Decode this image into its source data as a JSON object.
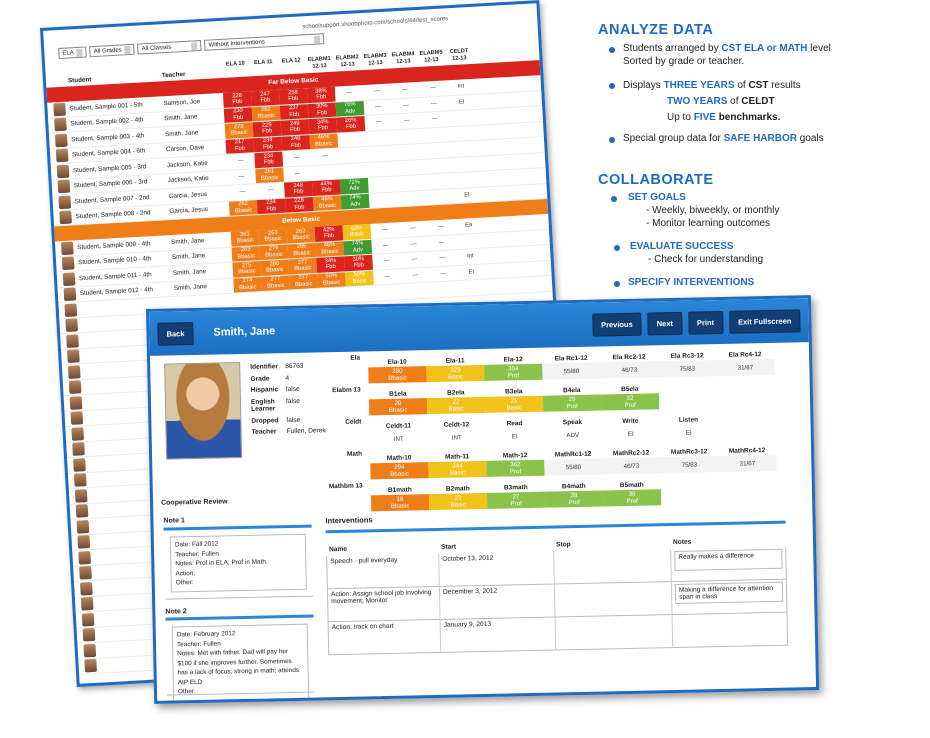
{
  "back": {
    "url": "schoolsupport.shoobphoto.com/schools/44/test_scores",
    "filters": [
      "ELA",
      "All Grades",
      "All Classes",
      "Without Interventions"
    ],
    "headers": {
      "student": "Student",
      "teacher": "Teacher",
      "cols": [
        "ELA 10",
        "ELA 11",
        "ELA 12",
        "ELABM1 12-13",
        "ELABM2 12-13",
        "ELABM3 12-13",
        "ELABM4 12-13",
        "ELABM5 12-13",
        "CELDT 12-13"
      ]
    },
    "bands": {
      "far_below": "Far Below Basic",
      "below": "Below Basic"
    },
    "rows_fbb": [
      {
        "name": "Student, Sample 001 - 5th",
        "teacher": "Samson, Joe",
        "scores": [
          [
            "228",
            "Fbb",
            "r"
          ],
          [
            "247",
            "Fbb",
            "r"
          ],
          [
            "258",
            "Fbb",
            "r"
          ],
          [
            "38%",
            "Fbb",
            "r"
          ],
          [
            "—",
            "",
            "n"
          ],
          [
            "—",
            "",
            "n"
          ],
          [
            "—",
            "",
            "n"
          ],
          [
            "—",
            "",
            "n"
          ],
          [
            "Int",
            "",
            "n"
          ]
        ]
      },
      {
        "name": "Student, Sample 002 - 4th",
        "teacher": "Smith, Jane",
        "scores": [
          [
            "230",
            "Fbb",
            "r"
          ],
          [
            "262",
            "Bbasic",
            "o"
          ],
          [
            "237",
            "Fbb",
            "r"
          ],
          [
            "30%",
            "Fbb",
            "r"
          ],
          [
            "76%",
            "Adv",
            "g"
          ],
          [
            "—",
            "",
            "n"
          ],
          [
            "—",
            "",
            "n"
          ],
          [
            "—",
            "",
            "n"
          ],
          [
            "EI",
            "",
            "n"
          ]
        ]
      },
      {
        "name": "Student, Sample 003 - 4th",
        "teacher": "Smith, Jane",
        "scores": [
          [
            "278",
            "Bbasic",
            "o"
          ],
          [
            "229",
            "Fbb",
            "r"
          ],
          [
            "249",
            "Fbb",
            "r"
          ],
          [
            "34%",
            "Fbb",
            "r"
          ],
          [
            "26%",
            "Fbb",
            "r"
          ],
          [
            "—",
            "",
            "n"
          ],
          [
            "—",
            "",
            "n"
          ],
          [
            "—",
            "",
            "n"
          ],
          [
            "",
            "",
            "n"
          ]
        ]
      },
      {
        "name": "Student, Sample 004 - 6th",
        "teacher": "Carson, Dave",
        "scores": [
          [
            "217",
            "Fbb",
            "r"
          ],
          [
            "234",
            "Fbb",
            "r"
          ],
          [
            "246",
            "Fbb",
            "r"
          ],
          [
            "46%",
            "Bbasic",
            "o"
          ],
          [
            "",
            "",
            "n"
          ],
          [
            "",
            "",
            "n"
          ],
          [
            "",
            "",
            "n"
          ],
          [
            "",
            "",
            "n"
          ],
          [
            "",
            "",
            "n"
          ]
        ]
      },
      {
        "name": "Student, Sample 005 - 3rd",
        "teacher": "Jackson, Katie",
        "scores": [
          [
            "—",
            "",
            "n"
          ],
          [
            "234",
            "Fbb",
            "r"
          ],
          [
            "—",
            "",
            "n"
          ],
          [
            "—",
            "",
            "n"
          ],
          [
            "",
            "",
            "n"
          ],
          [
            "",
            "",
            "n"
          ],
          [
            "",
            "",
            "n"
          ],
          [
            "",
            "",
            "n"
          ],
          [
            "",
            "",
            "n"
          ]
        ]
      },
      {
        "name": "Student, Sample 006 - 3rd",
        "teacher": "Jackson, Katie",
        "scores": [
          [
            "—",
            "",
            "n"
          ],
          [
            "261",
            "Bbasic",
            "o"
          ],
          [
            "—",
            "",
            "n"
          ],
          [
            "",
            "",
            "n"
          ],
          [
            "",
            "",
            "n"
          ],
          [
            "",
            "",
            "n"
          ],
          [
            "",
            "",
            "n"
          ],
          [
            "",
            "",
            "n"
          ],
          [
            "",
            "",
            "n"
          ]
        ]
      },
      {
        "name": "Student, Sample 007 - 2nd",
        "teacher": "Garcia, Jesus",
        "scores": [
          [
            "—",
            "",
            "n"
          ],
          [
            "—",
            "",
            "n"
          ],
          [
            "248",
            "Fbb",
            "r"
          ],
          [
            "44%",
            "Fbb",
            "r"
          ],
          [
            "72%",
            "Adv",
            "g"
          ],
          [
            "",
            "",
            "n"
          ],
          [
            "",
            "",
            "n"
          ],
          [
            "",
            "",
            "n"
          ],
          [
            "",
            "",
            "n"
          ]
        ]
      },
      {
        "name": "Student, Sample 008 - 2nd",
        "teacher": "Garcia, Jesus",
        "scores": [
          [
            "262",
            "Bbasic",
            "o"
          ],
          [
            "234",
            "Fbb",
            "r"
          ],
          [
            "228",
            "Fbb",
            "r"
          ],
          [
            "46%",
            "Bbasic",
            "o"
          ],
          [
            "74%",
            "Adv",
            "g"
          ],
          [
            "",
            "",
            "n"
          ],
          [
            "",
            "",
            "n"
          ],
          [
            "",
            "",
            "n"
          ],
          [
            "EI",
            "",
            "n"
          ]
        ]
      }
    ],
    "rows_bb": [
      {
        "name": "Student, Sample 009 - 4th",
        "teacher": "Smith, Jane",
        "scores": [
          [
            "263",
            "Bbasic",
            "o"
          ],
          [
            "263",
            "Bbasic",
            "o"
          ],
          [
            "263",
            "Bbasic",
            "o"
          ],
          [
            "42%",
            "Fbb",
            "r"
          ],
          [
            "63%",
            "Basic",
            "y"
          ],
          [
            "—",
            "",
            "n"
          ],
          [
            "—",
            "",
            "n"
          ],
          [
            "—",
            "",
            "n"
          ],
          [
            "Ea",
            "",
            "n"
          ]
        ]
      },
      {
        "name": "Student, Sample 010 - 4th",
        "teacher": "Smith, Jane",
        "scores": [
          [
            "263",
            "Bbasic",
            "o"
          ],
          [
            "276",
            "Bbasic",
            "o"
          ],
          [
            "286",
            "Bbasic",
            "o"
          ],
          [
            "46%",
            "Bbasic",
            "o"
          ],
          [
            "74%",
            "Adv",
            "g"
          ],
          [
            "—",
            "",
            "n"
          ],
          [
            "—",
            "",
            "n"
          ],
          [
            "—",
            "",
            "n"
          ],
          [
            "",
            "",
            "n"
          ]
        ]
      },
      {
        "name": "Student, Sample 011 - 4th",
        "teacher": "Smith, Jane",
        "scores": [
          [
            "275",
            "Bbasic",
            "o"
          ],
          [
            "280",
            "Bbasic",
            "o"
          ],
          [
            "277",
            "Bbasic",
            "o"
          ],
          [
            "34%",
            "Fbb",
            "r"
          ],
          [
            "30%",
            "Fbb",
            "r"
          ],
          [
            "—",
            "",
            "n"
          ],
          [
            "—",
            "",
            "n"
          ],
          [
            "—",
            "",
            "n"
          ],
          [
            "Int",
            "",
            "n"
          ]
        ]
      },
      {
        "name": "Student, Sample 012 - 4th",
        "teacher": "Smith, Jane",
        "scores": [
          [
            "274",
            "Bbasic",
            "o"
          ],
          [
            "277",
            "Bbasic",
            "o"
          ],
          [
            "277",
            "Bbasic",
            "o"
          ],
          [
            "50%",
            "Bbasic",
            "o"
          ],
          [
            "50%",
            "Basic",
            "y"
          ],
          [
            "—",
            "",
            "n"
          ],
          [
            "—",
            "",
            "n"
          ],
          [
            "—",
            "",
            "n"
          ],
          [
            "EI",
            "",
            "n"
          ]
        ]
      }
    ],
    "extra_rows": 24
  },
  "detail": {
    "back_label": "Back",
    "student_name": "Smith, Jane",
    "buttons": {
      "previous": "Previous",
      "next": "Next",
      "print": "Print",
      "exit": "Exit Fullscreen"
    },
    "info": [
      {
        "k": "Identifier",
        "v": "86763"
      },
      {
        "k": "Grade",
        "v": "4"
      },
      {
        "k": "Hispanic",
        "v": "false"
      },
      {
        "k": "English Learner",
        "v": "false"
      },
      {
        "k": "Dropped",
        "v": "false"
      },
      {
        "k": "Teacher",
        "v": "Fullen, Derek"
      }
    ],
    "score_groups": [
      {
        "label": "Ela",
        "cells": [
          {
            "h": "Ela-10",
            "v1": "280",
            "v2": "Bbasic",
            "c": "o"
          },
          {
            "h": "Ela-11",
            "v1": "329",
            "v2": "Basic",
            "c": "y"
          },
          {
            "h": "Ela-12",
            "v1": "354",
            "v2": "Prof",
            "c": "l"
          },
          {
            "h": "Ela Rc1-12",
            "v1": "55/80",
            "v2": "",
            "c": "n"
          },
          {
            "h": "Ela Rc2-12",
            "v1": "46/73",
            "v2": "",
            "c": "n"
          },
          {
            "h": "Ela Rc3-12",
            "v1": "75/83",
            "v2": "",
            "c": "n"
          },
          {
            "h": "Ela Rc4-12",
            "v1": "31/67",
            "v2": "",
            "c": "n"
          }
        ]
      },
      {
        "label": "Elabm 13",
        "cells": [
          {
            "h": "B1ela",
            "v1": "20",
            "v2": "Bbasic",
            "c": "o"
          },
          {
            "h": "B2ela",
            "v1": "22",
            "v2": "Basic",
            "c": "y"
          },
          {
            "h": "B3ela",
            "v1": "21",
            "v2": "Basic",
            "c": "y"
          },
          {
            "h": "B4ela",
            "v1": "29",
            "v2": "Prof",
            "c": "l"
          },
          {
            "h": "B5ela",
            "v1": "32",
            "v2": "Prof",
            "c": "l"
          }
        ]
      },
      {
        "label": "Celdt",
        "cells": [
          {
            "h": "Celdt-11",
            "v1": "INT",
            "v2": "",
            "c": "p"
          },
          {
            "h": "Celdt-12",
            "v1": "INT",
            "v2": "",
            "c": "p"
          },
          {
            "h": "Read",
            "v1": "EI",
            "v2": "",
            "c": "p"
          },
          {
            "h": "Speak",
            "v1": "ADV",
            "v2": "",
            "c": "p"
          },
          {
            "h": "Write",
            "v1": "EI",
            "v2": "",
            "c": "p"
          },
          {
            "h": "Listen",
            "v1": "EI",
            "v2": "",
            "c": "p"
          }
        ]
      },
      {
        "label": "Math",
        "cells": [
          {
            "h": "Math-10",
            "v1": "294",
            "v2": "Bbasic",
            "c": "o"
          },
          {
            "h": "Math-11",
            "v1": "344",
            "v2": "Basic",
            "c": "y"
          },
          {
            "h": "Math-12",
            "v1": "362",
            "v2": "Prof",
            "c": "l"
          },
          {
            "h": "MathRc1-12",
            "v1": "55/80",
            "v2": "",
            "c": "n"
          },
          {
            "h": "MathRc2-12",
            "v1": "46/73",
            "v2": "",
            "c": "n"
          },
          {
            "h": "MathRc3-12",
            "v1": "75/83",
            "v2": "",
            "c": "n"
          },
          {
            "h": "MathRc4-12",
            "v1": "31/67",
            "v2": "",
            "c": "n"
          }
        ]
      },
      {
        "label": "Mathbm 13",
        "cells": [
          {
            "h": "B1math",
            "v1": "18",
            "v2": "Bbasic",
            "c": "o"
          },
          {
            "h": "B2math",
            "v1": "23",
            "v2": "Basic",
            "c": "y"
          },
          {
            "h": "B3math",
            "v1": "27",
            "v2": "Prof",
            "c": "l"
          },
          {
            "h": "B4math",
            "v1": "29",
            "v2": "Prof",
            "c": "l"
          },
          {
            "h": "B5math",
            "v1": "30",
            "v2": "Prof",
            "c": "l"
          }
        ]
      }
    ],
    "cooperative_review": "Cooperative Review",
    "note1": {
      "label": "Note 1",
      "lines": [
        "Date: Fall 2012",
        "Teacher: Fullen",
        "Notes: Prof in ELA, Prof in Math.",
        "Action:",
        "Other:"
      ]
    },
    "note2": {
      "label": "Note 2",
      "lines": [
        "Date: February 2012",
        "Teacher: Fullen",
        "Notes: Met with father. Dad will pay her $100 if she improves further. Sometimes has a lack of focus; strong in math; attends AIP ELD",
        "Other:"
      ]
    },
    "interventions_title": "Interventions",
    "interv_headers": [
      "Name",
      "Start",
      "Stop",
      "Notes"
    ],
    "interv_rows": [
      [
        "Speech - pull everyday",
        "October 13, 2012",
        "",
        "Really makes a difference"
      ],
      [
        "Action: Assign school job involving movement; Monitor",
        "December 3, 2012",
        "",
        "Making a difference for attention span in class"
      ],
      [
        "Action: track on chart",
        "January 9, 2013",
        "",
        ""
      ]
    ]
  },
  "side": {
    "analyze_title": "ANALYZE DATA",
    "b1_a": "Students arranged by",
    "b1_hl": "CST ELA or MATH",
    "b1_b": "level",
    "b1_c": "Sorted by grade or teacher.",
    "b2_a": "Displays",
    "b2_hl1": "THREE YEARS",
    "b2_b": "of",
    "b2_hl2": "CST",
    "b2_c": "results",
    "b2_hl3": "TWO YEARS",
    "b2_d": "of",
    "b2_hl4": "CELDT",
    "b2_e": "Up to",
    "b2_hl5": "FIVE",
    "b2_hl6": "benchmarks.",
    "b3_a": "Special group data for",
    "b3_hl": "SAFE HARBOR",
    "b3_b": "goals",
    "collab_title": "COLLABORATE",
    "set_goals": "SET GOALS",
    "sg_1": "- Weekly, biweekly, or monthly",
    "sg_2": "- Monitor learning outcomes",
    "eval": "EVALUATE SUCCESS",
    "ev_1": "- Check for understanding",
    "specify": "SPECIFY INTERVENTIONS"
  },
  "colors": {
    "accent": "#1e6bc1",
    "fbb": "#d9251d",
    "bbasic": "#ef7d18",
    "basic": "#f2c21b",
    "prof": "#8ac34a",
    "adv": "#3f9b32"
  }
}
